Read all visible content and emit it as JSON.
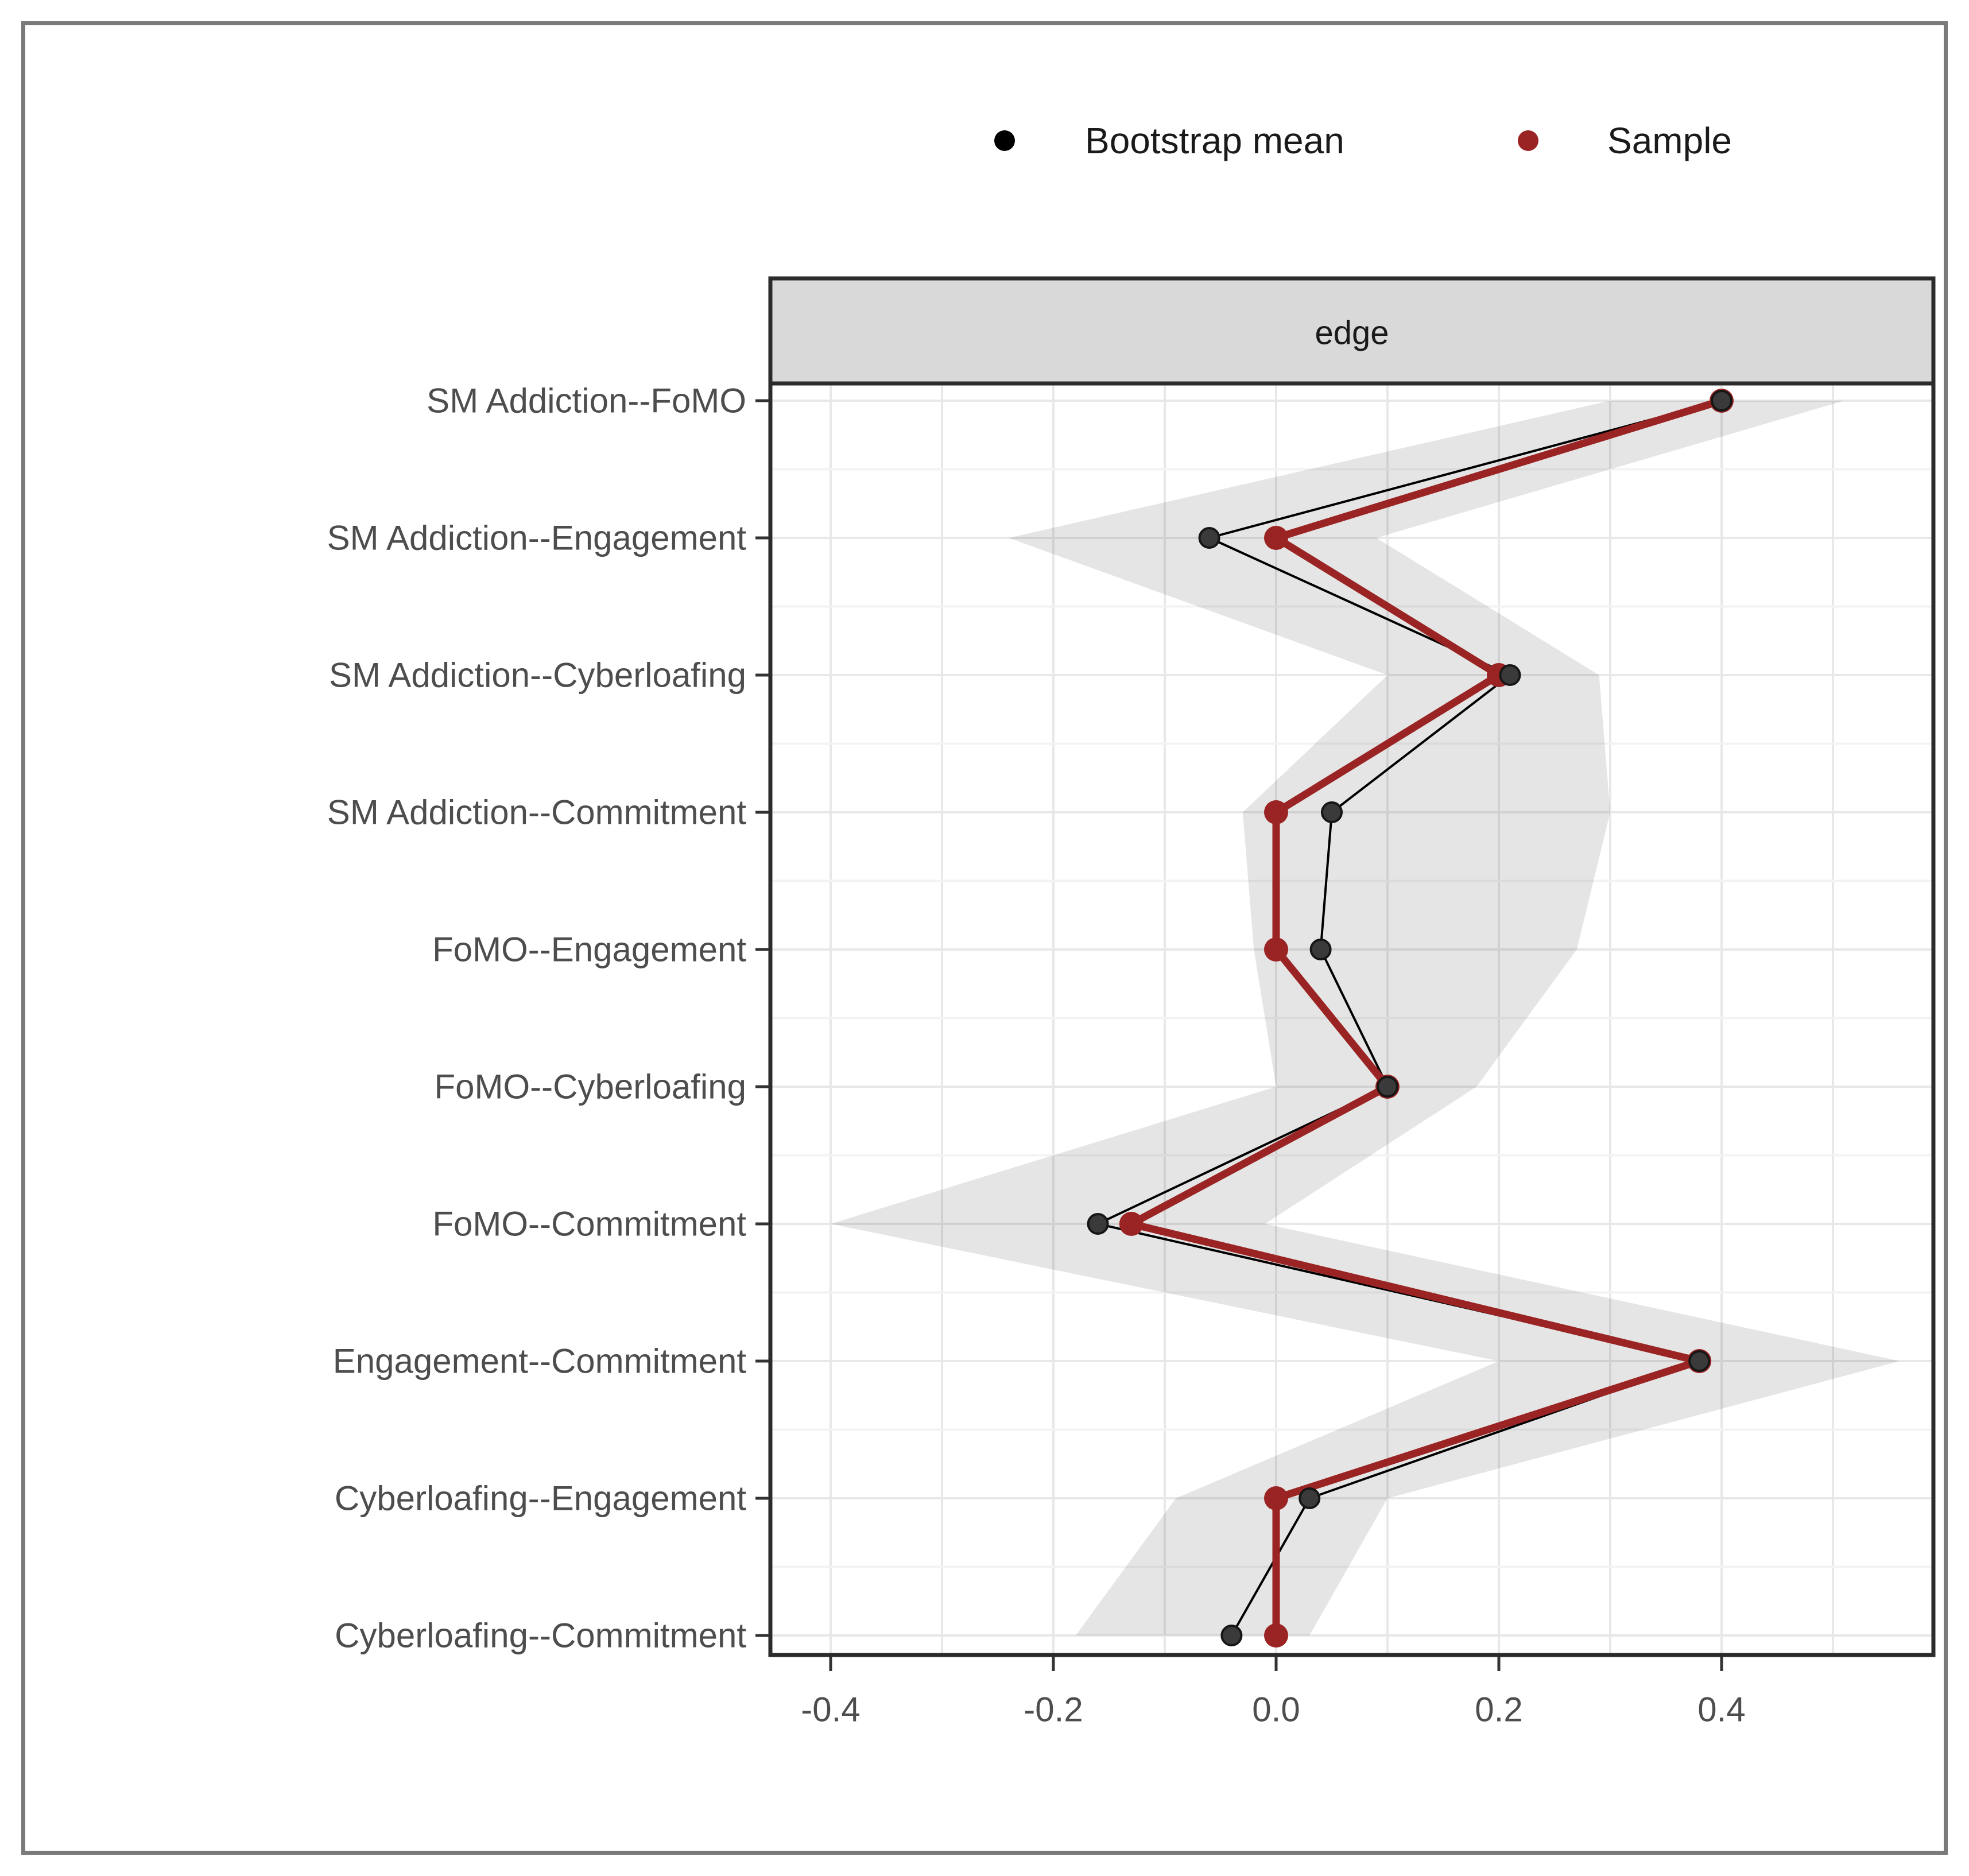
{
  "figure": {
    "panel_title": "edge",
    "legend_items": [
      {
        "label": "Bootstrap mean",
        "color": "#000000"
      },
      {
        "label": "Sample",
        "color": "#9a2423"
      }
    ]
  },
  "chart_data": {
    "type": "line",
    "orientation": "horizontal-dot-line",
    "title": "",
    "xlabel": "",
    "ylabel": "",
    "panel_title": "edge",
    "categories": [
      "SM Addiction--FoMO",
      "SM Addiction--Engagement",
      "SM Addiction--Cyberloafing",
      "SM Addiction--Commitment",
      "FoMO--Engagement",
      "FoMO--Cyberloafing",
      "FoMO--Commitment",
      "Engagement--Commitment",
      "Cyberloafing--Engagement",
      "Cyberloafing--Commitment"
    ],
    "series": [
      {
        "name": "Bootstrap mean",
        "color": "#000000",
        "values": [
          0.4,
          -0.06,
          0.21,
          0.05,
          0.04,
          0.1,
          -0.16,
          0.38,
          0.03,
          -0.04
        ]
      },
      {
        "name": "Sample",
        "color": "#9a2423",
        "values": [
          0.4,
          0.0,
          0.2,
          0.0,
          0.0,
          0.1,
          -0.13,
          0.38,
          0.0,
          0.0
        ]
      }
    ],
    "ci_band": {
      "lo": [
        0.3,
        -0.24,
        0.1,
        -0.03,
        -0.02,
        0.0,
        -0.4,
        0.2,
        -0.09,
        -0.18
      ],
      "hi": [
        0.51,
        0.09,
        0.29,
        0.3,
        0.27,
        0.18,
        -0.01,
        0.56,
        0.1,
        0.03
      ],
      "color": "rgba(0,0,0,0.10)"
    },
    "x_ticks": {
      "values": [
        -0.4,
        -0.2,
        0.0,
        0.2,
        0.4
      ],
      "labels": [
        "-0.4",
        "-0.2",
        "0.0",
        "0.2",
        "0.4"
      ]
    },
    "xlim": [
      -0.454,
      0.59
    ],
    "grid": {
      "x_step": 0.1,
      "grid_on": true
    },
    "legend_position": "top",
    "colors": {
      "band": "rgba(0,0,0,0.10)",
      "grid_major": "#e8e8e8",
      "grid_minor": "#f3f3f3",
      "panel_border": "#2b2b2b",
      "strip_background": "#d9d9d9",
      "axis_text": "#4d4d4d",
      "tick_mark": "#333333"
    }
  }
}
